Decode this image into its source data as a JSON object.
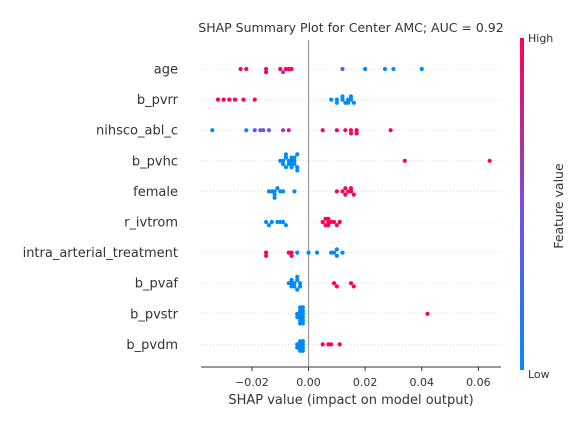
{
  "chart_data": {
    "type": "scatter",
    "title": "SHAP Summary Plot for Center AMC; AUC = 0.92",
    "xlabel": "SHAP value (impact on model output)",
    "ylabel": "",
    "xlim": [
      -0.038,
      0.068
    ],
    "xticks": [
      -0.02,
      0.0,
      0.02,
      0.04,
      0.06
    ],
    "xtick_labels": [
      "−0.02",
      "0.00",
      "0.02",
      "0.04",
      "0.06"
    ],
    "colorbar": {
      "label": "Feature value",
      "high_label": "High",
      "low_label": "Low",
      "low_color": "#008bfb",
      "mid_color": "#7b4fd6",
      "high_color": "#ff0052"
    },
    "features": [
      {
        "name": "age",
        "points": [
          {
            "x": -0.024,
            "v": 1
          },
          {
            "x": -0.022,
            "v": 1
          },
          {
            "x": -0.015,
            "v": 1
          },
          {
            "x": -0.015,
            "v": 1
          },
          {
            "x": -0.01,
            "v": 1
          },
          {
            "x": -0.008,
            "v": 1
          },
          {
            "x": -0.007,
            "v": 1
          },
          {
            "x": -0.006,
            "v": 1
          },
          {
            "x": -0.009,
            "v": 0.6
          },
          {
            "x": 0.012,
            "v": 0.35
          },
          {
            "x": 0.02,
            "v": 0
          },
          {
            "x": 0.027,
            "v": 0
          },
          {
            "x": 0.03,
            "v": 0
          },
          {
            "x": 0.04,
            "v": 0
          }
        ]
      },
      {
        "name": "b_pvrr",
        "points": [
          {
            "x": -0.032,
            "v": 1
          },
          {
            "x": -0.03,
            "v": 1
          },
          {
            "x": -0.028,
            "v": 1
          },
          {
            "x": -0.026,
            "v": 1
          },
          {
            "x": -0.023,
            "v": 1
          },
          {
            "x": -0.019,
            "v": 1
          },
          {
            "x": 0.008,
            "v": 0
          },
          {
            "x": 0.01,
            "v": 0
          },
          {
            "x": 0.01,
            "v": 0
          },
          {
            "x": 0.012,
            "v": 0
          },
          {
            "x": 0.013,
            "v": 0
          },
          {
            "x": 0.014,
            "v": 0
          },
          {
            "x": 0.014,
            "v": 0
          },
          {
            "x": 0.015,
            "v": 0
          },
          {
            "x": 0.016,
            "v": 0
          },
          {
            "x": 0.012,
            "v": 0
          },
          {
            "x": 0.015,
            "v": 0
          }
        ]
      },
      {
        "name": "nihsco_abl_c",
        "points": [
          {
            "x": -0.034,
            "v": 0
          },
          {
            "x": -0.022,
            "v": 0.1
          },
          {
            "x": -0.019,
            "v": 0.35
          },
          {
            "x": -0.017,
            "v": 0.45
          },
          {
            "x": -0.016,
            "v": 0.5
          },
          {
            "x": -0.014,
            "v": 0.4
          },
          {
            "x": -0.009,
            "v": 0.6
          },
          {
            "x": -0.007,
            "v": 0.8
          },
          {
            "x": 0.005,
            "v": 1
          },
          {
            "x": 0.01,
            "v": 1
          },
          {
            "x": 0.013,
            "v": 1
          },
          {
            "x": 0.015,
            "v": 1
          },
          {
            "x": 0.015,
            "v": 1
          },
          {
            "x": 0.017,
            "v": 1
          },
          {
            "x": 0.017,
            "v": 1
          },
          {
            "x": 0.029,
            "v": 1
          }
        ]
      },
      {
        "name": "b_pvhc",
        "points": [
          {
            "x": -0.01,
            "v": 0
          },
          {
            "x": -0.009,
            "v": 0
          },
          {
            "x": -0.009,
            "v": 0
          },
          {
            "x": -0.008,
            "v": 0
          },
          {
            "x": -0.008,
            "v": 0
          },
          {
            "x": -0.007,
            "v": 0
          },
          {
            "x": -0.007,
            "v": 0
          },
          {
            "x": -0.006,
            "v": 0
          },
          {
            "x": -0.006,
            "v": 0
          },
          {
            "x": -0.006,
            "v": 0
          },
          {
            "x": -0.005,
            "v": 0
          },
          {
            "x": -0.005,
            "v": 0
          },
          {
            "x": -0.005,
            "v": 0
          },
          {
            "x": -0.004,
            "v": 0
          },
          {
            "x": -0.004,
            "v": 0
          },
          {
            "x": -0.004,
            "v": 0
          },
          {
            "x": -0.008,
            "v": 0
          },
          {
            "x": -0.006,
            "v": 0
          },
          {
            "x": 0.034,
            "v": 1
          },
          {
            "x": 0.064,
            "v": 1
          }
        ]
      },
      {
        "name": "female",
        "points": [
          {
            "x": -0.014,
            "v": 0
          },
          {
            "x": -0.013,
            "v": 0
          },
          {
            "x": -0.012,
            "v": 0
          },
          {
            "x": -0.012,
            "v": 0
          },
          {
            "x": -0.011,
            "v": 0
          },
          {
            "x": -0.01,
            "v": 0
          },
          {
            "x": -0.009,
            "v": 0
          },
          {
            "x": -0.012,
            "v": 0
          },
          {
            "x": -0.005,
            "v": 0
          },
          {
            "x": 0.01,
            "v": 1
          },
          {
            "x": 0.012,
            "v": 1
          },
          {
            "x": 0.013,
            "v": 1
          },
          {
            "x": 0.014,
            "v": 1
          },
          {
            "x": 0.015,
            "v": 1
          },
          {
            "x": 0.016,
            "v": 1
          },
          {
            "x": 0.013,
            "v": 1
          },
          {
            "x": 0.015,
            "v": 1
          }
        ]
      },
      {
        "name": "r_ivtrom",
        "points": [
          {
            "x": -0.015,
            "v": 0
          },
          {
            "x": -0.014,
            "v": 0
          },
          {
            "x": -0.013,
            "v": 0
          },
          {
            "x": -0.011,
            "v": 0
          },
          {
            "x": -0.01,
            "v": 0
          },
          {
            "x": -0.009,
            "v": 0
          },
          {
            "x": -0.008,
            "v": 0
          },
          {
            "x": 0.005,
            "v": 1
          },
          {
            "x": 0.006,
            "v": 1
          },
          {
            "x": 0.006,
            "v": 1
          },
          {
            "x": 0.007,
            "v": 1
          },
          {
            "x": 0.007,
            "v": 1
          },
          {
            "x": 0.008,
            "v": 1
          },
          {
            "x": 0.009,
            "v": 1
          },
          {
            "x": 0.01,
            "v": 1
          },
          {
            "x": 0.011,
            "v": 1
          },
          {
            "x": 0.007,
            "v": 1
          }
        ]
      },
      {
        "name": "intra_arterial_treatment",
        "points": [
          {
            "x": -0.015,
            "v": 1
          },
          {
            "x": -0.015,
            "v": 1
          },
          {
            "x": -0.007,
            "v": 1
          },
          {
            "x": -0.006,
            "v": 1
          },
          {
            "x": -0.006,
            "v": 1
          },
          {
            "x": -0.004,
            "v": 0
          },
          {
            "x": 0.0,
            "v": 0
          },
          {
            "x": 0.003,
            "v": 0
          },
          {
            "x": 0.008,
            "v": 0
          },
          {
            "x": 0.009,
            "v": 0
          },
          {
            "x": 0.01,
            "v": 0
          },
          {
            "x": 0.01,
            "v": 0
          },
          {
            "x": 0.012,
            "v": 0
          }
        ]
      },
      {
        "name": "b_pvaf",
        "points": [
          {
            "x": -0.007,
            "v": 0
          },
          {
            "x": -0.006,
            "v": 0
          },
          {
            "x": -0.006,
            "v": 0
          },
          {
            "x": -0.005,
            "v": 0
          },
          {
            "x": -0.005,
            "v": 0
          },
          {
            "x": -0.004,
            "v": 0
          },
          {
            "x": -0.004,
            "v": 0
          },
          {
            "x": -0.003,
            "v": 0
          },
          {
            "x": -0.006,
            "v": 0
          },
          {
            "x": -0.004,
            "v": 0
          },
          {
            "x": -0.003,
            "v": 0
          },
          {
            "x": 0.009,
            "v": 1
          },
          {
            "x": 0.01,
            "v": 1
          },
          {
            "x": 0.015,
            "v": 1
          },
          {
            "x": 0.016,
            "v": 1
          }
        ]
      },
      {
        "name": "b_pvstr",
        "points": [
          {
            "x": -0.004,
            "v": 0
          },
          {
            "x": -0.004,
            "v": 0
          },
          {
            "x": -0.003,
            "v": 0
          },
          {
            "x": -0.003,
            "v": 0
          },
          {
            "x": -0.003,
            "v": 0
          },
          {
            "x": -0.003,
            "v": 0
          },
          {
            "x": -0.002,
            "v": 0
          },
          {
            "x": -0.002,
            "v": 0
          },
          {
            "x": -0.002,
            "v": 0
          },
          {
            "x": -0.002,
            "v": 0
          },
          {
            "x": -0.003,
            "v": 0
          },
          {
            "x": -0.002,
            "v": 0
          },
          {
            "x": -0.003,
            "v": 0
          },
          {
            "x": -0.002,
            "v": 0
          },
          {
            "x": 0.042,
            "v": 1
          }
        ]
      },
      {
        "name": "b_pvdm",
        "points": [
          {
            "x": -0.004,
            "v": 0
          },
          {
            "x": -0.004,
            "v": 0
          },
          {
            "x": -0.003,
            "v": 0
          },
          {
            "x": -0.003,
            "v": 0
          },
          {
            "x": -0.003,
            "v": 0
          },
          {
            "x": -0.002,
            "v": 0
          },
          {
            "x": -0.002,
            "v": 0
          },
          {
            "x": -0.002,
            "v": 0
          },
          {
            "x": -0.003,
            "v": 0
          },
          {
            "x": -0.002,
            "v": 0
          },
          {
            "x": 0.005,
            "v": 1
          },
          {
            "x": 0.007,
            "v": 1
          },
          {
            "x": 0.008,
            "v": 1
          },
          {
            "x": 0.011,
            "v": 1
          }
        ]
      }
    ]
  }
}
